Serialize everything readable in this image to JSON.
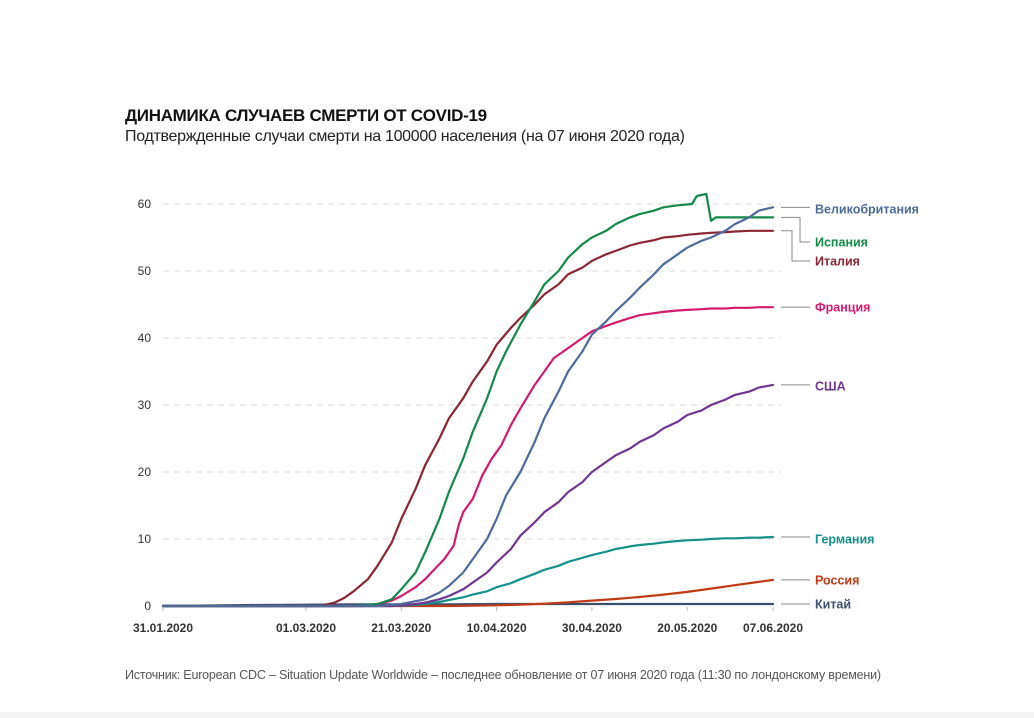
{
  "header": {
    "title": "ДИНАМИКА СЛУЧАЕВ СМЕРТИ ОТ COVID-19",
    "subtitle": "Подтвержденные случаи смерти на 100000 населения (на 07 июня 2020 года)"
  },
  "footer": {
    "source": "Источник: European CDC – Situation Update Worldwide – последнее обновление от 07 июня 2020 года (11:30 по лондонскому времени)"
  },
  "chart_data": {
    "type": "line",
    "title": "ДИНАМИКА СЛУЧАЕВ СМЕРТИ ОТ COVID-19",
    "subtitle": "Подтвержденные случаи смерти на 100000 населения (на 07 июня 2020 года)",
    "xlabel": "",
    "ylabel": "",
    "x_unit": "days since 31.01.2020",
    "xlim": [
      0,
      128
    ],
    "ylim": [
      0,
      62
    ],
    "grid": true,
    "legend": "right-end labels",
    "yticks": [
      0,
      10,
      20,
      30,
      40,
      50,
      60
    ],
    "xticks": [
      {
        "day": 0,
        "label": "31.01.2020"
      },
      {
        "day": 30,
        "label": "01.03.2020"
      },
      {
        "day": 50,
        "label": "21.03.2020"
      },
      {
        "day": 70,
        "label": "10.04.2020"
      },
      {
        "day": 90,
        "label": "30.04.2020"
      },
      {
        "day": 110,
        "label": "20.05.2020"
      },
      {
        "day": 128,
        "label": "07.06.2020"
      }
    ],
    "series": [
      {
        "name": "Великобритания",
        "color": "#4e6a9c",
        "label_value": 59.5,
        "x": [
          0,
          45,
          50,
          55,
          58,
          60,
          63,
          65,
          68,
          70,
          72,
          75,
          78,
          80,
          83,
          85,
          88,
          90,
          93,
          95,
          98,
          100,
          103,
          105,
          108,
          110,
          113,
          115,
          118,
          120,
          123,
          125,
          128
        ],
        "y": [
          0,
          0,
          0.3,
          1.0,
          2.0,
          3.0,
          5.0,
          7.0,
          10.0,
          13.0,
          16.5,
          20.0,
          24.5,
          28.0,
          32.0,
          35.0,
          38.0,
          40.5,
          42.5,
          44.0,
          46.0,
          47.5,
          49.5,
          51.0,
          52.5,
          53.5,
          54.5,
          55.0,
          56.0,
          57.0,
          58.0,
          59.0,
          59.5
        ]
      },
      {
        "name": "Испания",
        "color": "#13894a",
        "label_value": 58.0,
        "x": [
          0,
          40,
          45,
          48,
          50,
          53,
          55,
          58,
          60,
          63,
          65,
          68,
          70,
          72,
          75,
          78,
          80,
          83,
          85,
          88,
          90,
          93,
          95,
          98,
          100,
          103,
          105,
          108,
          111,
          112,
          114,
          115,
          116,
          117,
          120,
          125,
          128
        ],
        "y": [
          0,
          0,
          0.3,
          1.0,
          2.5,
          5.0,
          8.0,
          13.0,
          17.0,
          22.0,
          26.0,
          31.0,
          35.0,
          38.0,
          42.0,
          45.5,
          48.0,
          50.0,
          52.0,
          54.0,
          55.0,
          56.0,
          57.0,
          58.0,
          58.5,
          59.0,
          59.5,
          59.8,
          60.0,
          61.2,
          61.5,
          57.5,
          58.0,
          58.0,
          58.0,
          58.0,
          58.0
        ]
      },
      {
        "name": "Италия",
        "color": "#8b2533",
        "label_value": 56.0,
        "x": [
          0,
          33,
          36,
          38,
          40,
          43,
          45,
          48,
          50,
          53,
          55,
          58,
          60,
          63,
          65,
          68,
          70,
          73,
          75,
          78,
          80,
          83,
          85,
          88,
          90,
          93,
          95,
          98,
          100,
          103,
          105,
          108,
          110,
          113,
          115,
          118,
          120,
          123,
          125,
          128
        ],
        "y": [
          0,
          0,
          0.5,
          1.2,
          2.2,
          4.0,
          6.0,
          9.5,
          13.0,
          17.5,
          21.0,
          25.0,
          28.0,
          31.0,
          33.5,
          36.5,
          39.0,
          41.5,
          43.0,
          45.0,
          46.5,
          48.0,
          49.5,
          50.5,
          51.5,
          52.5,
          53.0,
          53.8,
          54.2,
          54.6,
          55.0,
          55.2,
          55.4,
          55.6,
          55.7,
          55.8,
          55.9,
          56.0,
          56.0,
          56.0
        ]
      },
      {
        "name": "Франция",
        "color": "#d41a6e",
        "label_value": 44.6,
        "x": [
          0,
          42,
          45,
          48,
          50,
          53,
          55,
          57,
          59,
          61,
          62,
          63,
          65,
          67,
          69,
          71,
          73,
          75,
          78,
          80,
          82,
          85,
          88,
          90,
          93,
          95,
          98,
          100,
          103,
          105,
          108,
          110,
          113,
          115,
          118,
          120,
          123,
          125,
          128
        ],
        "y": [
          0,
          0,
          0.3,
          0.8,
          1.5,
          2.8,
          4.0,
          5.5,
          7.0,
          9.0,
          12.0,
          14.0,
          16.0,
          19.5,
          22.0,
          24.0,
          27.0,
          29.5,
          33.0,
          35.0,
          37.0,
          38.5,
          40.0,
          41.0,
          41.8,
          42.3,
          43.0,
          43.4,
          43.7,
          43.9,
          44.1,
          44.2,
          44.3,
          44.4,
          44.4,
          44.5,
          44.5,
          44.6,
          44.6
        ]
      },
      {
        "name": "США",
        "color": "#6e3592",
        "label_value": 33.0,
        "x": [
          0,
          48,
          52,
          55,
          58,
          60,
          63,
          65,
          68,
          70,
          73,
          75,
          78,
          80,
          83,
          85,
          88,
          90,
          93,
          95,
          98,
          100,
          103,
          105,
          108,
          110,
          113,
          115,
          118,
          120,
          123,
          125,
          128
        ],
        "y": [
          0,
          0,
          0.2,
          0.5,
          1.0,
          1.5,
          2.5,
          3.5,
          5.0,
          6.5,
          8.5,
          10.5,
          12.5,
          14.0,
          15.5,
          17.0,
          18.5,
          20.0,
          21.5,
          22.5,
          23.5,
          24.5,
          25.5,
          26.5,
          27.5,
          28.5,
          29.2,
          30.0,
          30.8,
          31.5,
          32.0,
          32.6,
          33.0
        ]
      },
      {
        "name": "Германия",
        "color": "#159189",
        "label_value": 10.3,
        "x": [
          0,
          48,
          52,
          55,
          58,
          60,
          63,
          65,
          68,
          70,
          73,
          75,
          78,
          80,
          83,
          85,
          88,
          90,
          93,
          95,
          98,
          100,
          103,
          105,
          108,
          110,
          113,
          115,
          118,
          120,
          123,
          125,
          128
        ],
        "y": [
          0,
          0,
          0.1,
          0.3,
          0.6,
          0.9,
          1.3,
          1.7,
          2.2,
          2.8,
          3.4,
          4.0,
          4.8,
          5.4,
          6.0,
          6.6,
          7.2,
          7.6,
          8.1,
          8.5,
          8.9,
          9.1,
          9.3,
          9.5,
          9.7,
          9.8,
          9.9,
          10.0,
          10.1,
          10.1,
          10.2,
          10.2,
          10.3
        ]
      },
      {
        "name": "Россия",
        "color": "#c23a13",
        "label_value": 3.9,
        "x": [
          0,
          60,
          65,
          70,
          75,
          80,
          85,
          90,
          95,
          100,
          105,
          110,
          115,
          120,
          125,
          128
        ],
        "y": [
          0,
          0,
          0.05,
          0.1,
          0.2,
          0.35,
          0.55,
          0.8,
          1.05,
          1.35,
          1.7,
          2.1,
          2.6,
          3.1,
          3.6,
          3.9
        ]
      },
      {
        "name": "Китай",
        "color": "#3d4f6e",
        "label_value": 0.3,
        "x": [
          0,
          20,
          30,
          40,
          50,
          60,
          70,
          80,
          90,
          100,
          110,
          120,
          128
        ],
        "y": [
          0.0,
          0.15,
          0.2,
          0.25,
          0.25,
          0.25,
          0.3,
          0.3,
          0.3,
          0.3,
          0.3,
          0.3,
          0.3
        ]
      }
    ]
  }
}
